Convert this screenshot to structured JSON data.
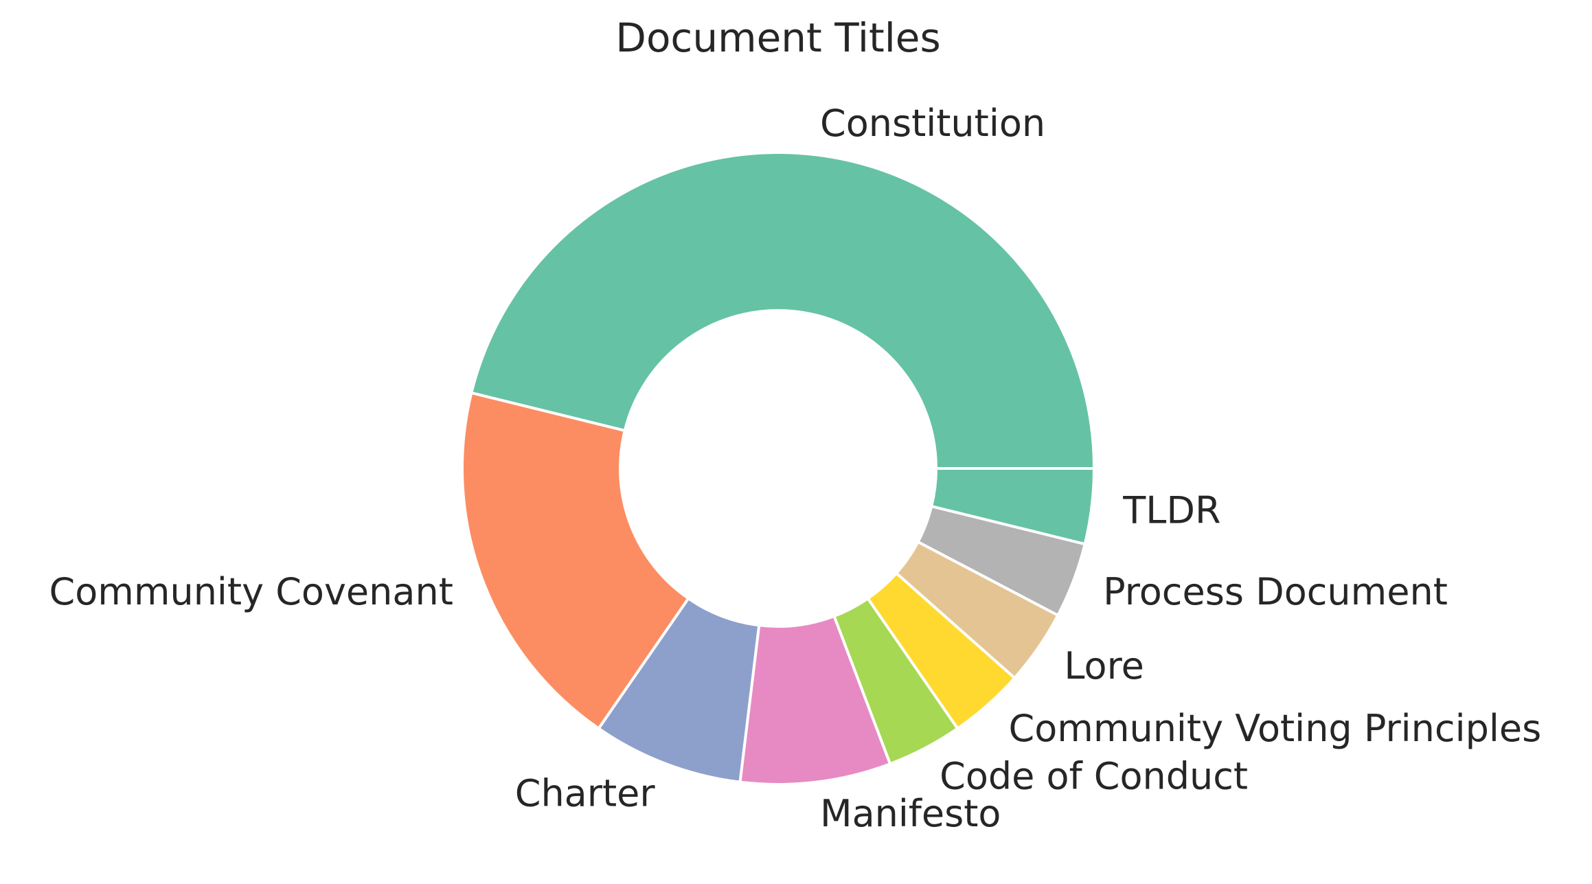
{
  "chart_data": {
    "type": "pie",
    "donut": true,
    "title": "Document Titles",
    "categories": [
      "Constitution",
      "Community Covenant",
      "Charter",
      "Manifesto",
      "Code of Conduct",
      "Community Voting Principles",
      "Lore",
      "Process Document",
      "TLDR"
    ],
    "values": [
      12,
      5,
      2,
      2,
      1,
      1,
      1,
      1,
      1
    ],
    "colors": [
      "#66c2a5",
      "#fc8d62",
      "#8da0cb",
      "#e78ac3",
      "#a6d854",
      "#ffd92f",
      "#e5c494",
      "#b3b3b3",
      "#66c2a5"
    ],
    "start_angle_degrees": 0,
    "direction": "counterclockwise",
    "legend": "none"
  }
}
